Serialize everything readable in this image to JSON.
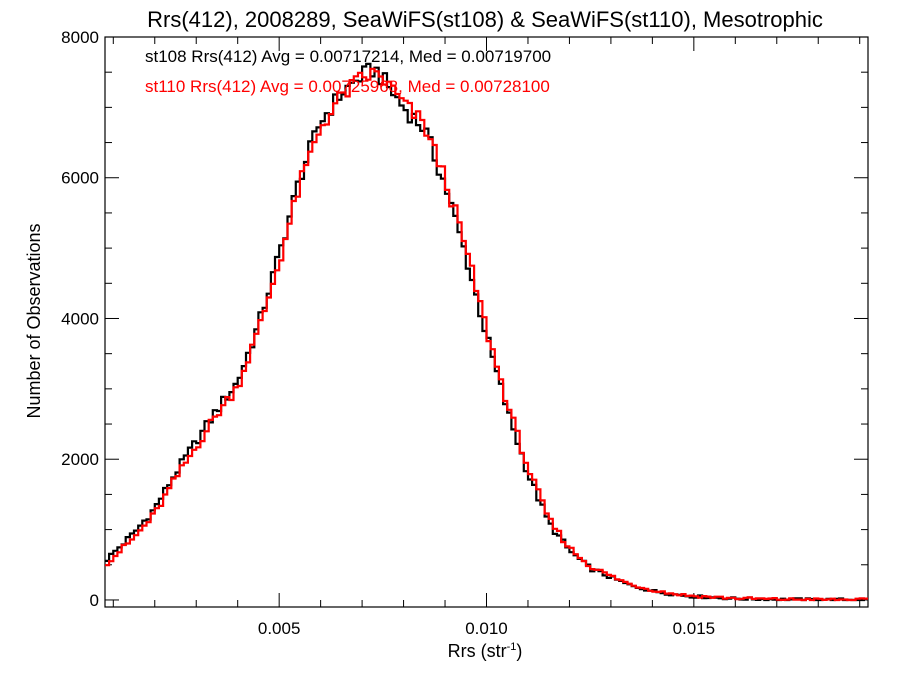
{
  "chart_data": {
    "type": "line",
    "title": "Rrs(412), 2008289, SeaWiFS(st108) & SeaWiFS(st110), Mesotrophic",
    "xlabel": "Rrs (str",
    "xlabel_sup": "-1",
    "xlabel_tail": ")",
    "ylabel": "Number of Observations",
    "xlim": [
      0.0008,
      0.0192
    ],
    "ylim": [
      -100,
      8000
    ],
    "x_ticks": [
      0.005,
      0.01,
      0.015
    ],
    "x_tick_labels": [
      "0.005",
      "0.010",
      "0.015"
    ],
    "y_ticks": [
      0,
      2000,
      4000,
      6000,
      8000
    ],
    "y_tick_labels": [
      "0",
      "2000",
      "4000",
      "6000",
      "8000"
    ],
    "grid": false,
    "legend": "top-left",
    "series": [
      {
        "name": "st108",
        "color": "#000000",
        "annotation": "st108 Rrs(412) Avg = 0.00717214, Med = 0.00719700",
        "x": [
          0.0008,
          0.0015,
          0.002,
          0.0025,
          0.003,
          0.0035,
          0.004,
          0.0045,
          0.005,
          0.0055,
          0.006,
          0.0065,
          0.007,
          0.0073,
          0.0075,
          0.008,
          0.0085,
          0.009,
          0.0095,
          0.01,
          0.0105,
          0.011,
          0.0115,
          0.012,
          0.0125,
          0.013,
          0.0135,
          0.014,
          0.0145,
          0.015,
          0.016,
          0.017,
          0.018,
          0.0192
        ],
        "y": [
          550,
          950,
          1300,
          1800,
          2250,
          2700,
          3100,
          3900,
          4900,
          6000,
          6800,
          7200,
          7450,
          7550,
          7400,
          7000,
          6700,
          5900,
          4900,
          3750,
          2700,
          1800,
          1100,
          700,
          450,
          320,
          200,
          130,
          80,
          50,
          20,
          8,
          4,
          2
        ]
      },
      {
        "name": "st110",
        "color": "#ff0000",
        "annotation": "st110 Rrs(412) Avg = 0.00725968, Med = 0.00728100",
        "x": [
          0.0008,
          0.0015,
          0.002,
          0.0025,
          0.003,
          0.0035,
          0.004,
          0.0045,
          0.005,
          0.0055,
          0.006,
          0.0065,
          0.007,
          0.0073,
          0.0075,
          0.008,
          0.0085,
          0.009,
          0.0095,
          0.01,
          0.0105,
          0.011,
          0.0115,
          0.012,
          0.0125,
          0.013,
          0.0135,
          0.014,
          0.0145,
          0.015,
          0.016,
          0.017,
          0.018,
          0.0192
        ],
        "y": [
          500,
          880,
          1220,
          1720,
          2180,
          2640,
          3040,
          3820,
          4800,
          5900,
          6720,
          7150,
          7420,
          7480,
          7420,
          7050,
          6750,
          6000,
          5000,
          3850,
          2800,
          1880,
          1150,
          740,
          480,
          340,
          215,
          140,
          88,
          56,
          24,
          10,
          5,
          2
        ]
      }
    ]
  }
}
